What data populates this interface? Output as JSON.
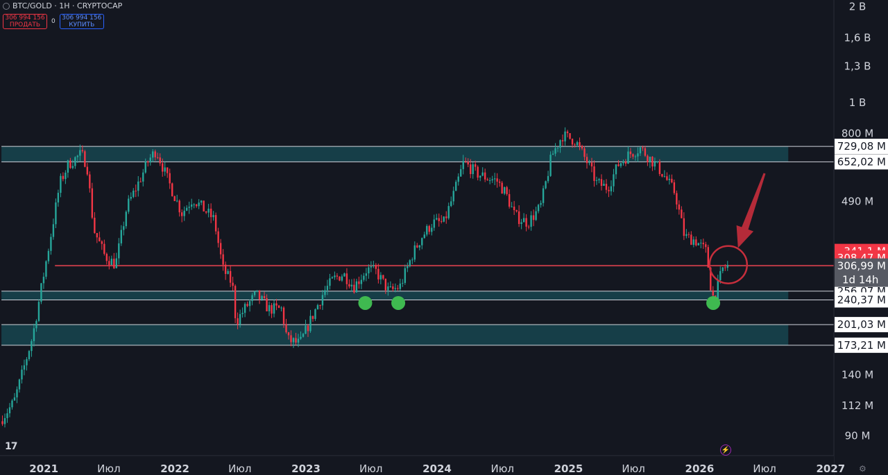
{
  "header": {
    "symbol": "BTC/GOLD · 1H · CRYPTOCAP",
    "sell_price": "306 994 156",
    "sell_label": "ПРОДАТЬ",
    "spread": "0",
    "buy_price": "306 994 156",
    "buy_label": "КУПИТЬ"
  },
  "logo_text": "17",
  "icons": {
    "symbol": "coin-icon",
    "logo": "tradingview-logo-icon",
    "bolt": "lightning-icon",
    "settings": "gear-icon"
  },
  "colors": {
    "background": "#141720",
    "zone": "#163e48",
    "up": "#26a69a",
    "down": "#f23645",
    "support_dot": "#3fb950",
    "arrow": "#c62e3c",
    "price_tag": "#f23645",
    "countdown_tag": "#575a63"
  },
  "chart_data": {
    "type": "candlestick",
    "y_scale": "log",
    "title": "",
    "xlabel": "",
    "ylabel": "",
    "x_range": [
      "2020-09-01",
      "2027-01-10"
    ],
    "y_range": [
      78000000,
      2100000000
    ],
    "y_ticks": [
      {
        "value": 2000000000,
        "label": "2 B"
      },
      {
        "value": 1600000000,
        "label": "1,6 B"
      },
      {
        "value": 1300000000,
        "label": "1,3 B"
      },
      {
        "value": 1000000000,
        "label": "1 B"
      },
      {
        "value": 800000000,
        "label": "800 M"
      },
      {
        "value": 490000000,
        "label": "490 M"
      },
      {
        "value": 140000000,
        "label": "140 M"
      },
      {
        "value": 112000000,
        "label": "112 M"
      },
      {
        "value": 90000000,
        "label": "90 M"
      }
    ],
    "x_ticks": [
      {
        "date": "2021-01-01",
        "label": "2021",
        "year": true
      },
      {
        "date": "2021-07-01",
        "label": "Июл",
        "year": false
      },
      {
        "date": "2022-01-01",
        "label": "2022",
        "year": true
      },
      {
        "date": "2022-07-01",
        "label": "Июл",
        "year": false
      },
      {
        "date": "2023-01-01",
        "label": "2023",
        "year": true
      },
      {
        "date": "2023-07-01",
        "label": "Июл",
        "year": false
      },
      {
        "date": "2024-01-01",
        "label": "2024",
        "year": true
      },
      {
        "date": "2024-07-01",
        "label": "Июл",
        "year": false
      },
      {
        "date": "2025-01-01",
        "label": "2025",
        "year": true
      },
      {
        "date": "2025-07-01",
        "label": "Июл",
        "year": false
      },
      {
        "date": "2026-01-01",
        "label": "2026",
        "year": true
      },
      {
        "date": "2026-07-01",
        "label": "Июл",
        "year": false
      },
      {
        "date": "2027-01-01",
        "label": "2027",
        "year": true
      }
    ],
    "zones": [
      {
        "from": 652020000,
        "to": 729080000,
        "label_top": "729,08 M",
        "label_bottom": "652,02 M",
        "start": "2020-09-05",
        "end": "2026-09-05"
      },
      {
        "from": 240370000,
        "to": 256070000,
        "label_top": "256,07 M",
        "label_bottom": "240,37 M",
        "start": "2020-09-05",
        "end": "2026-09-05"
      },
      {
        "from": 173210000,
        "to": 201030000,
        "label_top": "201,03 M",
        "label_bottom": "173,21 M",
        "start": "2020-09-05",
        "end": "2026-09-05"
      }
    ],
    "red_lines": [
      {
        "value": 308470000,
        "label": "308,47 M",
        "start": "2021-02-01"
      },
      {
        "value": 306990000,
        "label": "306,99 M",
        "start": "2021-02-01"
      }
    ],
    "price_tag": {
      "value": 341100000,
      "label": "341,1 M"
    },
    "last_price": {
      "value": 306990000,
      "label": "306,99 M",
      "countdown": "1d 14h"
    },
    "path": [
      [
        "2020-09-01",
        100000000
      ],
      [
        "2020-10-10",
        115000000
      ],
      [
        "2020-11-01",
        140000000
      ],
      [
        "2020-12-01",
        185000000
      ],
      [
        "2021-01-01",
        290000000
      ],
      [
        "2021-01-20",
        380000000
      ],
      [
        "2021-02-15",
        560000000
      ],
      [
        "2021-03-10",
        640000000
      ],
      [
        "2021-04-15",
        690000000
      ],
      [
        "2021-05-01",
        640000000
      ],
      [
        "2021-05-20",
        400000000
      ],
      [
        "2021-06-20",
        330000000
      ],
      [
        "2021-07-20",
        310000000
      ],
      [
        "2021-08-20",
        470000000
      ],
      [
        "2021-09-15",
        540000000
      ],
      [
        "2021-10-20",
        660000000
      ],
      [
        "2021-11-10",
        710000000
      ],
      [
        "2021-12-10",
        580000000
      ],
      [
        "2022-01-20",
        450000000
      ],
      [
        "2022-02-20",
        500000000
      ],
      [
        "2022-03-25",
        460000000
      ],
      [
        "2022-04-20",
        430000000
      ],
      [
        "2022-05-15",
        300000000
      ],
      [
        "2022-06-10",
        270000000
      ],
      [
        "2022-06-20",
        205000000
      ],
      [
        "2022-07-20",
        230000000
      ],
      [
        "2022-08-15",
        250000000
      ],
      [
        "2022-09-20",
        225000000
      ],
      [
        "2022-10-25",
        225000000
      ],
      [
        "2022-11-10",
        180000000
      ],
      [
        "2022-12-15",
        175000000
      ],
      [
        "2023-01-20",
        215000000
      ],
      [
        "2023-02-20",
        255000000
      ],
      [
        "2023-03-20",
        280000000
      ],
      [
        "2023-04-15",
        290000000
      ],
      [
        "2023-05-15",
        265000000
      ],
      [
        "2023-06-20",
        300000000
      ],
      [
        "2023-07-15",
        295000000
      ],
      [
        "2023-08-20",
        255000000
      ],
      [
        "2023-09-20",
        265000000
      ],
      [
        "2023-10-25",
        335000000
      ],
      [
        "2023-11-20",
        380000000
      ],
      [
        "2023-12-20",
        420000000
      ],
      [
        "2024-01-20",
        420000000
      ],
      [
        "2024-02-20",
        530000000
      ],
      [
        "2024-03-15",
        650000000
      ],
      [
        "2024-04-20",
        600000000
      ],
      [
        "2024-05-20",
        580000000
      ],
      [
        "2024-06-15",
        570000000
      ],
      [
        "2024-07-10",
        520000000
      ],
      [
        "2024-08-05",
        440000000
      ],
      [
        "2024-09-10",
        420000000
      ],
      [
        "2024-10-15",
        470000000
      ],
      [
        "2024-11-15",
        680000000
      ],
      [
        "2024-12-15",
        790000000
      ],
      [
        "2025-01-20",
        760000000
      ],
      [
        "2025-02-25",
        640000000
      ],
      [
        "2025-03-20",
        560000000
      ],
      [
        "2025-04-20",
        540000000
      ],
      [
        "2025-05-20",
        640000000
      ],
      [
        "2025-06-20",
        690000000
      ],
      [
        "2025-07-20",
        720000000
      ],
      [
        "2025-08-25",
        650000000
      ],
      [
        "2025-09-20",
        600000000
      ],
      [
        "2025-10-25",
        520000000
      ],
      [
        "2025-11-20",
        380000000
      ],
      [
        "2025-12-20",
        370000000
      ],
      [
        "2026-01-20",
        340000000
      ],
      [
        "2026-02-05",
        245000000
      ],
      [
        "2026-02-15",
        250000000
      ],
      [
        "2026-03-05",
        300000000
      ],
      [
        "2026-03-20",
        307000000
      ]
    ],
    "support_markers": [
      {
        "date": "2023-06-15",
        "value": 235000000
      },
      {
        "date": "2023-09-15",
        "value": 235000000
      },
      {
        "date": "2026-02-08",
        "value": 235000000
      }
    ],
    "highlight_circle": {
      "date": "2026-03-22",
      "value": 310000000
    },
    "arrow": {
      "from_date": "2026-07-01",
      "from_value": 600000000,
      "to_date": "2026-04-18",
      "to_value": 350000000
    }
  }
}
